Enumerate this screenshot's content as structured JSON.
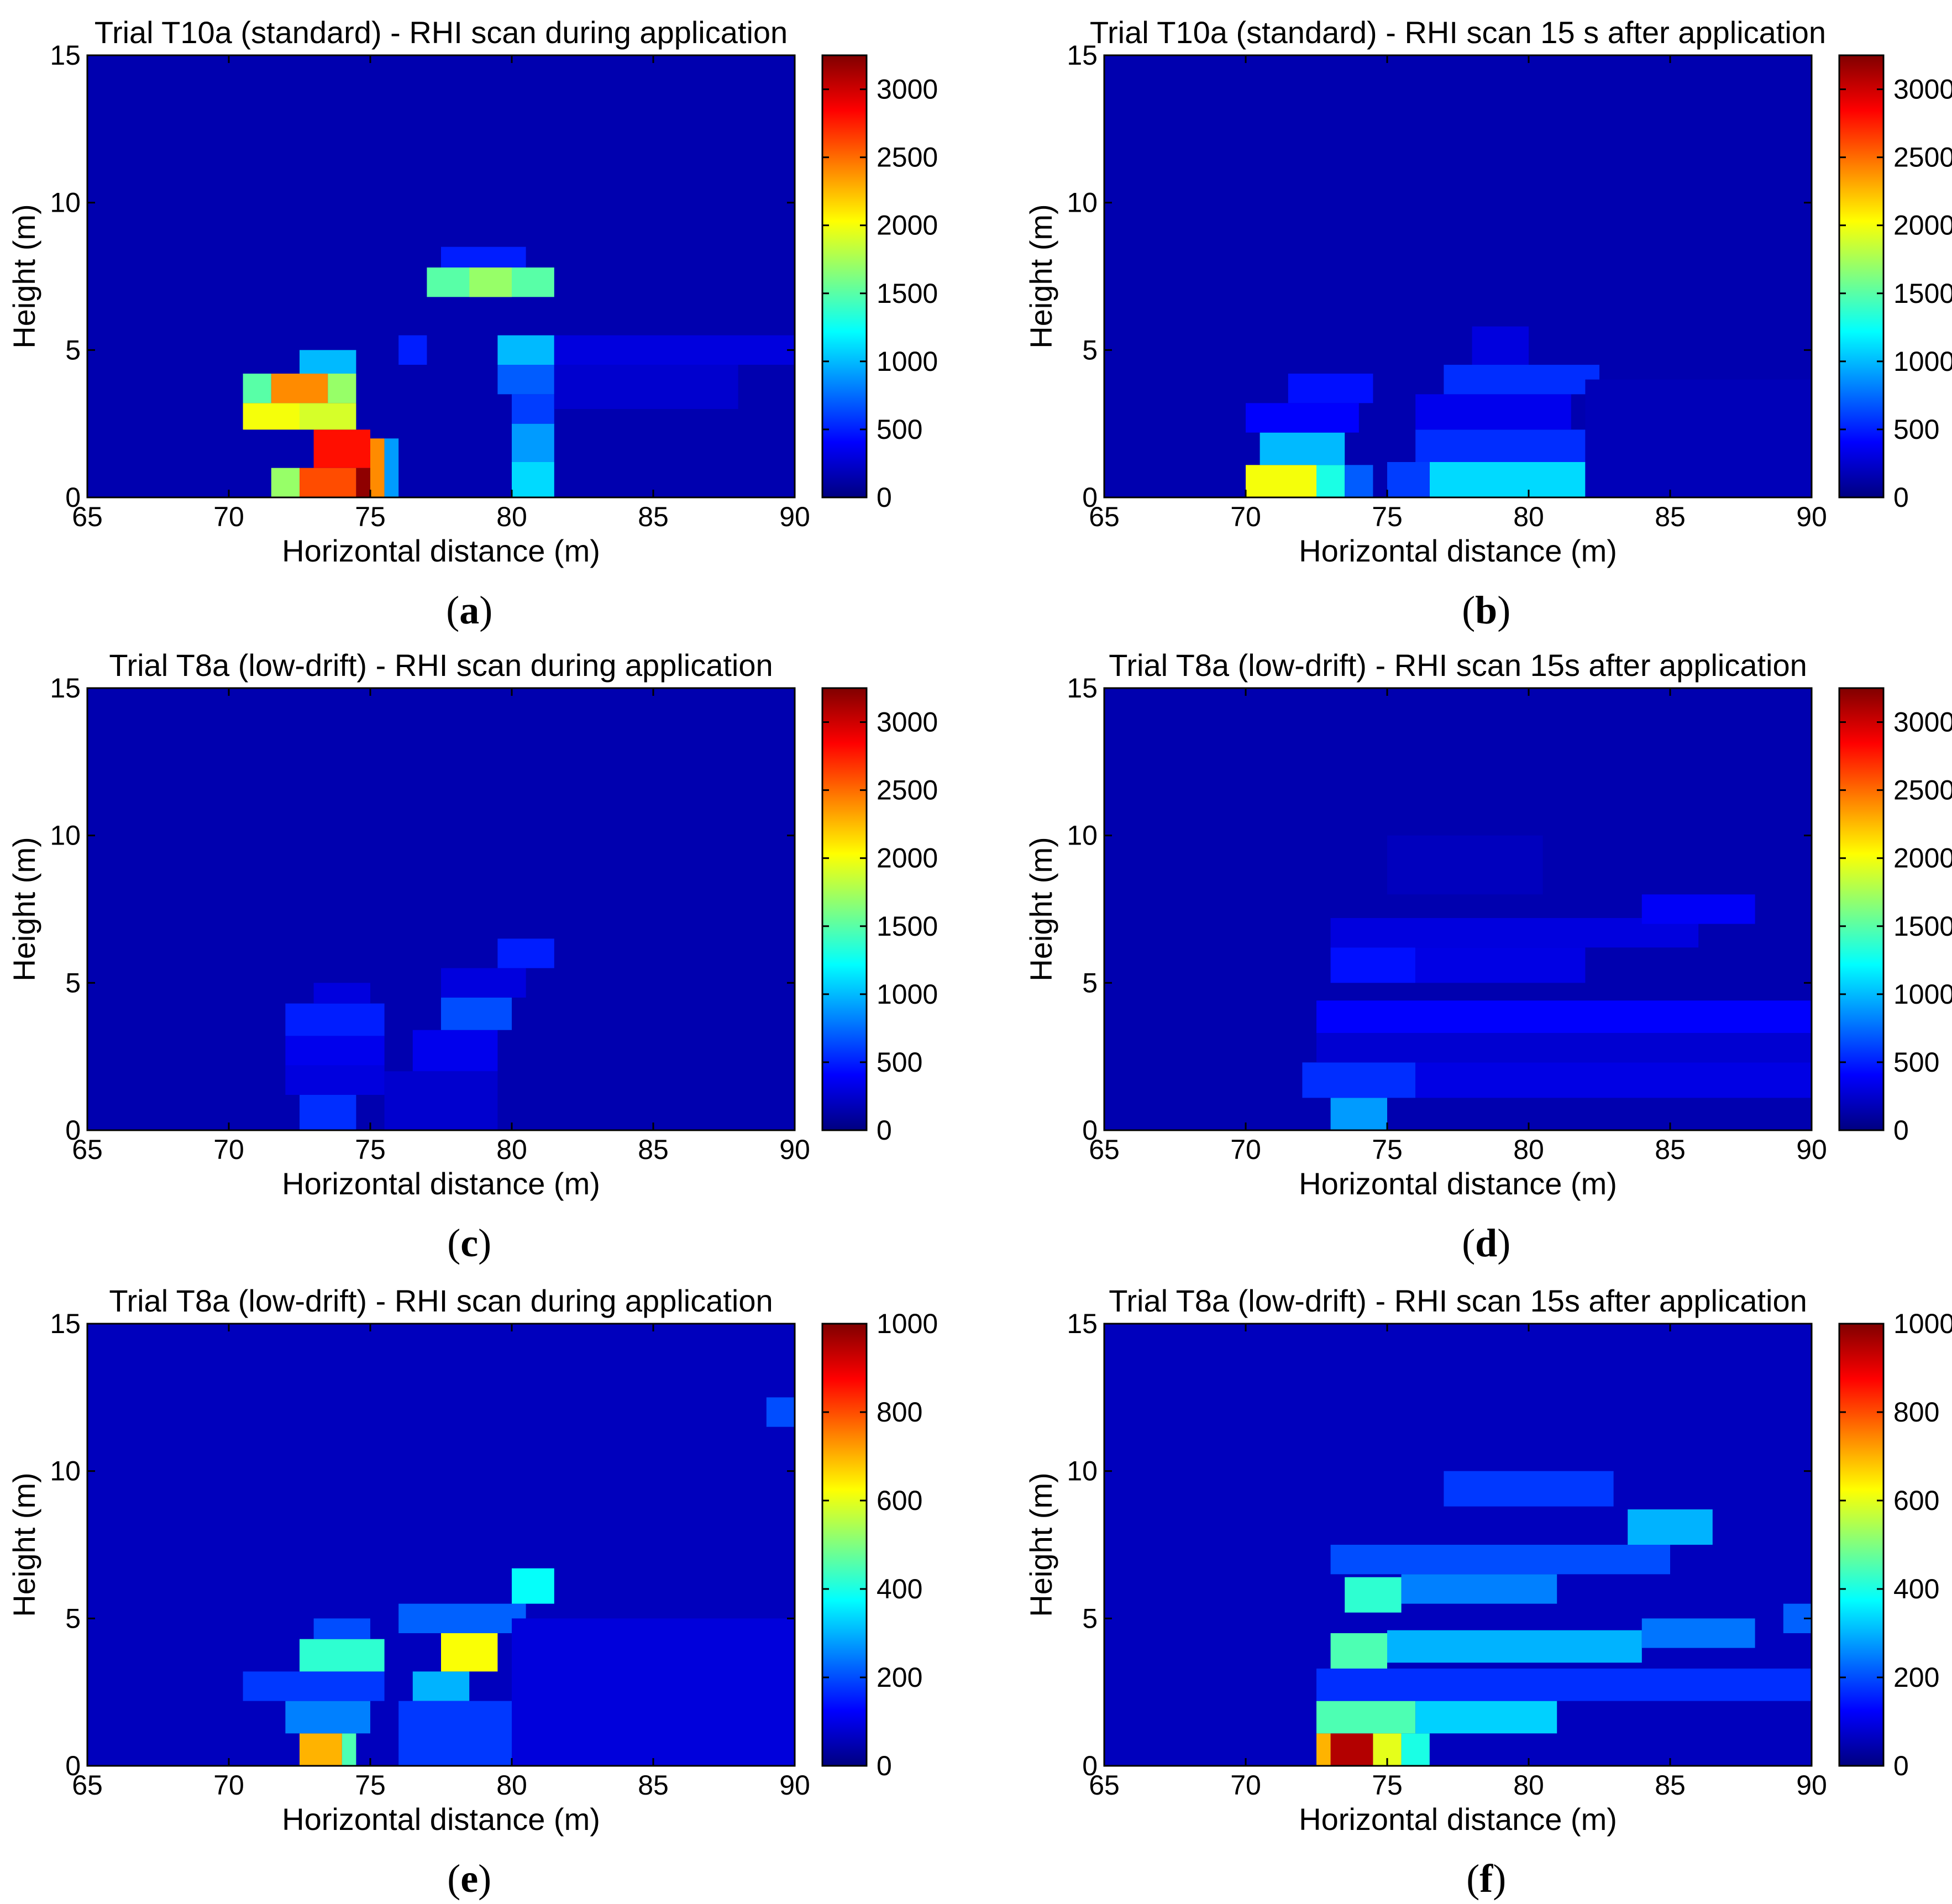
{
  "chart_data": [
    {
      "type": "heatmap",
      "title": "Trial T10a (standard) - RHI scan during application",
      "xlabel": "Horizontal distance (m)",
      "ylabel": "Height (m)",
      "caption": "a",
      "xlim": [
        65,
        90
      ],
      "ylim": [
        0,
        15
      ],
      "xticks": [
        "65",
        "70",
        "75",
        "80",
        "85",
        "90"
      ],
      "yticks": [
        "0",
        "5",
        "10",
        "15"
      ],
      "colorbar": {
        "min": 0,
        "max": 3250,
        "ticks": [
          "0",
          "500",
          "1000",
          "1500",
          "2000",
          "2500",
          "3000"
        ]
      },
      "background": 150,
      "cells": [
        [
          72.5,
          74.5,
          0,
          1,
          2600
        ],
        [
          74.5,
          75.5,
          0,
          1,
          3200
        ],
        [
          73.0,
          75.0,
          1,
          2.3,
          2800
        ],
        [
          75.0,
          75.5,
          0,
          2,
          2400
        ],
        [
          71.5,
          72.5,
          0,
          1,
          1700
        ],
        [
          70.5,
          72.5,
          2.3,
          3.2,
          2000
        ],
        [
          72.5,
          74.5,
          2.3,
          3.2,
          1900
        ],
        [
          70.5,
          71.5,
          3.2,
          4.2,
          1500
        ],
        [
          71.5,
          73.5,
          3.2,
          4.2,
          2400
        ],
        [
          73.5,
          74.5,
          3.2,
          4.2,
          1700
        ],
        [
          72.5,
          74.5,
          4.2,
          5.0,
          1000
        ],
        [
          75.5,
          76.0,
          0,
          2,
          900
        ],
        [
          76.0,
          77.0,
          4.5,
          5.5,
          500
        ],
        [
          77.0,
          81.5,
          6.8,
          7.8,
          1500
        ],
        [
          78.5,
          80.0,
          6.8,
          7.8,
          1700
        ],
        [
          77.5,
          80.5,
          7.8,
          8.5,
          500
        ],
        [
          80.0,
          81.5,
          0,
          1.2,
          1100
        ],
        [
          80.0,
          81.5,
          1.2,
          2.5,
          900
        ],
        [
          80.0,
          81.5,
          2.5,
          3.5,
          600
        ],
        [
          79.5,
          81.5,
          3.5,
          4.5,
          700
        ],
        [
          79.5,
          81.5,
          4.5,
          5.5,
          1000
        ],
        [
          81.5,
          90,
          4.5,
          5.5,
          300
        ],
        [
          81.5,
          88,
          3.0,
          4.5,
          250
        ]
      ]
    },
    {
      "type": "heatmap",
      "title": "Trial T10a (standard) - RHI scan 15 s after application",
      "xlabel": "Horizontal distance (m)",
      "ylabel": "Height (m)",
      "caption": "b",
      "xlim": [
        65,
        90
      ],
      "ylim": [
        0,
        15
      ],
      "xticks": [
        "65",
        "70",
        "75",
        "80",
        "85",
        "90"
      ],
      "yticks": [
        "0",
        "5",
        "10",
        "15"
      ],
      "colorbar": {
        "min": 0,
        "max": 3250,
        "ticks": [
          "0",
          "500",
          "1000",
          "1500",
          "2000",
          "2500",
          "3000"
        ]
      },
      "background": 150,
      "cells": [
        [
          70.0,
          72.5,
          0,
          1.1,
          2000
        ],
        [
          72.5,
          73.5,
          0,
          1.1,
          1300
        ],
        [
          73.5,
          74.5,
          0,
          1.1,
          700
        ],
        [
          70.5,
          73.5,
          1.1,
          2.2,
          1000
        ],
        [
          70.0,
          74.0,
          2.2,
          3.2,
          400
        ],
        [
          71.5,
          74.5,
          3.2,
          4.2,
          450
        ],
        [
          76.5,
          82.0,
          0,
          1.2,
          1100
        ],
        [
          75.0,
          76.5,
          0,
          1.2,
          600
        ],
        [
          76.0,
          82.0,
          1.2,
          2.3,
          550
        ],
        [
          76.0,
          81.5,
          2.3,
          3.5,
          350
        ],
        [
          77.0,
          82.5,
          3.5,
          4.5,
          550
        ],
        [
          78.0,
          80.0,
          4.5,
          5.8,
          300
        ],
        [
          82.0,
          90.0,
          0,
          4.0,
          180
        ]
      ]
    },
    {
      "type": "heatmap",
      "title": "Trial T8a (low-drift) - RHI scan during application",
      "xlabel": "Horizontal distance (m)",
      "ylabel": "Height (m)",
      "caption": "c",
      "xlim": [
        65,
        90
      ],
      "ylim": [
        0,
        15
      ],
      "xticks": [
        "65",
        "70",
        "75",
        "80",
        "85",
        "90"
      ],
      "yticks": [
        "0",
        "5",
        "10",
        "15"
      ],
      "colorbar": {
        "min": 0,
        "max": 3250,
        "ticks": [
          "0",
          "500",
          "1000",
          "1500",
          "2000",
          "2500",
          "3000"
        ]
      },
      "background": 150,
      "cells": [
        [
          72.5,
          74.5,
          0,
          1.2,
          550
        ],
        [
          72.0,
          75.5,
          1.2,
          2.2,
          300
        ],
        [
          72.0,
          75.5,
          2.2,
          3.2,
          350
        ],
        [
          72.0,
          75.5,
          3.2,
          4.3,
          500
        ],
        [
          73.0,
          75.0,
          4.3,
          5.0,
          300
        ],
        [
          76.5,
          79.5,
          2.0,
          3.4,
          350
        ],
        [
          77.5,
          80.0,
          3.4,
          4.5,
          650
        ],
        [
          77.5,
          80.5,
          4.5,
          5.5,
          300
        ],
        [
          79.5,
          81.5,
          5.5,
          6.5,
          500
        ],
        [
          75.5,
          79.5,
          0,
          2.0,
          250
        ]
      ]
    },
    {
      "type": "heatmap",
      "title": "Trial T8a (low-drift) - RHI scan 15s after application",
      "xlabel": "Horizontal distance (m)",
      "ylabel": "Height (m)",
      "caption": "d",
      "xlim": [
        65,
        90
      ],
      "ylim": [
        0,
        15
      ],
      "xticks": [
        "65",
        "70",
        "75",
        "80",
        "85",
        "90"
      ],
      "yticks": [
        "0",
        "5",
        "10",
        "15"
      ],
      "colorbar": {
        "min": 0,
        "max": 3250,
        "ticks": [
          "0",
          "500",
          "1000",
          "1500",
          "2000",
          "2500",
          "3000"
        ]
      },
      "background": 150,
      "cells": [
        [
          73.0,
          75.0,
          0,
          1.1,
          900
        ],
        [
          72.0,
          76.0,
          1.1,
          2.3,
          550
        ],
        [
          76.0,
          90.0,
          1.1,
          2.3,
          320
        ],
        [
          72.5,
          90.0,
          2.3,
          3.3,
          260
        ],
        [
          72.5,
          90.0,
          3.3,
          4.4,
          400
        ],
        [
          73.0,
          76.0,
          5.0,
          6.2,
          450
        ],
        [
          76.0,
          82.0,
          5.0,
          6.2,
          320
        ],
        [
          73.0,
          86.0,
          6.2,
          7.2,
          300
        ],
        [
          84.0,
          88.0,
          7.0,
          8.0,
          380
        ],
        [
          75.0,
          80.5,
          8.0,
          10.0,
          200
        ]
      ]
    },
    {
      "type": "heatmap",
      "title": "Trial T8a (low-drift) - RHI scan during application",
      "xlabel": "Horizontal distance (m)",
      "ylabel": "Height (m)",
      "caption": "e",
      "xlim": [
        65,
        90
      ],
      "ylim": [
        0,
        15
      ],
      "xticks": [
        "65",
        "70",
        "75",
        "80",
        "85",
        "90"
      ],
      "yticks": [
        "0",
        "5",
        "10",
        "15"
      ],
      "colorbar": {
        "min": 0,
        "max": 1000,
        "ticks": [
          "0",
          "200",
          "400",
          "600",
          "800",
          "1000"
        ]
      },
      "background": 60,
      "cells": [
        [
          72.5,
          74.0,
          0,
          1.1,
          700
        ],
        [
          74.0,
          74.5,
          0,
          1.1,
          450
        ],
        [
          72.0,
          75.0,
          1.1,
          2.2,
          250
        ],
        [
          70.5,
          75.5,
          2.2,
          3.2,
          180
        ],
        [
          72.5,
          75.5,
          3.2,
          4.3,
          420
        ],
        [
          73.0,
          75.0,
          4.3,
          5.0,
          200
        ],
        [
          76.5,
          78.5,
          2.2,
          3.2,
          300
        ],
        [
          77.5,
          79.5,
          3.2,
          4.5,
          620
        ],
        [
          76.0,
          80.5,
          4.5,
          5.5,
          220
        ],
        [
          80.0,
          81.5,
          5.5,
          6.7,
          380
        ],
        [
          76.0,
          80.0,
          0,
          2.2,
          180
        ],
        [
          80.0,
          90.0,
          0,
          5.0,
          90
        ],
        [
          89.0,
          90.0,
          11.5,
          12.5,
          200
        ]
      ]
    },
    {
      "type": "heatmap",
      "title": "Trial T8a (low-drift) - RHI scan 15s after application",
      "xlabel": "Horizontal distance (m)",
      "ylabel": "Height (m)",
      "caption": "f",
      "xlim": [
        65,
        90
      ],
      "ylim": [
        0,
        15
      ],
      "xticks": [
        "65",
        "70",
        "75",
        "80",
        "85",
        "90"
      ],
      "yticks": [
        "0",
        "5",
        "10",
        "15"
      ],
      "colorbar": {
        "min": 0,
        "max": 1000,
        "ticks": [
          "0",
          "200",
          "400",
          "600",
          "800",
          "1000"
        ]
      },
      "background": 60,
      "cells": [
        [
          73.0,
          74.5,
          0,
          1.1,
          950
        ],
        [
          72.5,
          73.0,
          0,
          1.1,
          700
        ],
        [
          74.5,
          75.5,
          0,
          1.1,
          600
        ],
        [
          75.5,
          76.5,
          0,
          1.1,
          400
        ],
        [
          72.5,
          76.0,
          1.1,
          2.2,
          450
        ],
        [
          76.0,
          81.0,
          1.1,
          2.2,
          330
        ],
        [
          72.5,
          90.0,
          2.2,
          3.3,
          170
        ],
        [
          73.0,
          75.0,
          3.3,
          4.5,
          450
        ],
        [
          75.0,
          84.0,
          3.5,
          4.6,
          300
        ],
        [
          84.0,
          88.0,
          4.0,
          5.0,
          240
        ],
        [
          89.0,
          90.0,
          4.5,
          5.5,
          220
        ],
        [
          73.5,
          75.5,
          5.2,
          6.4,
          420
        ],
        [
          75.5,
          81.0,
          5.5,
          6.5,
          250
        ],
        [
          73.0,
          85.0,
          6.5,
          7.5,
          200
        ],
        [
          83.5,
          86.5,
          7.5,
          8.7,
          300
        ],
        [
          77.0,
          83.0,
          8.8,
          10.0,
          180
        ]
      ]
    }
  ]
}
